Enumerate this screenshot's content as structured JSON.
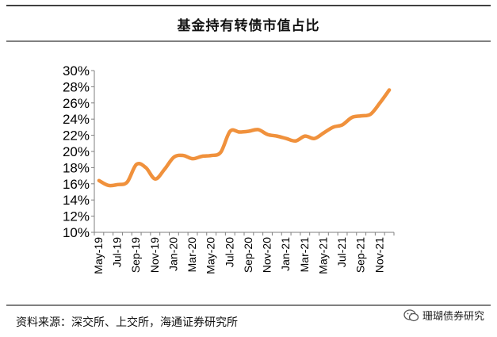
{
  "chart_data": {
    "type": "line",
    "title": "基金持有转债市值占比",
    "xlabel": "",
    "ylabel": "",
    "ylim": [
      10,
      30
    ],
    "yticks": [
      10,
      12,
      14,
      16,
      18,
      20,
      22,
      24,
      26,
      28,
      30
    ],
    "ytick_suffix": "%",
    "x_tick_labels": [
      "May-19",
      "Jul-19",
      "Sep-19",
      "Nov-19",
      "Jan-20",
      "Mar-20",
      "May-20",
      "Jul-20",
      "Sep-20",
      "Nov-20",
      "Jan-21",
      "Mar-21",
      "May-21",
      "Jul-21",
      "Sep-21",
      "Nov-21"
    ],
    "months": [
      "May-19",
      "Jun-19",
      "Jul-19",
      "Aug-19",
      "Sep-19",
      "Oct-19",
      "Nov-19",
      "Dec-19",
      "Jan-20",
      "Feb-20",
      "Mar-20",
      "Apr-20",
      "May-20",
      "Jun-20",
      "Jul-20",
      "Aug-20",
      "Sep-20",
      "Oct-20",
      "Nov-20",
      "Dec-20",
      "Jan-21",
      "Feb-21",
      "Mar-21",
      "Apr-21",
      "May-21",
      "Jun-21",
      "Jul-21",
      "Aug-21",
      "Sep-21",
      "Oct-21",
      "Nov-21",
      "Dec-21"
    ],
    "series": [
      {
        "name": "基金持有转债市值占比",
        "color": "#F0913C",
        "values": [
          16.4,
          15.8,
          15.9,
          16.2,
          18.4,
          18.0,
          16.6,
          17.8,
          19.3,
          19.5,
          19.1,
          19.4,
          19.5,
          19.9,
          22.5,
          22.4,
          22.5,
          22.7,
          22.1,
          21.9,
          21.6,
          21.3,
          21.9,
          21.6,
          22.3,
          23.0,
          23.3,
          24.2,
          24.4,
          24.6,
          26.0,
          27.6
        ]
      }
    ],
    "grid": false,
    "legend": "none"
  },
  "footer": {
    "source": "资料来源：深交所、上交所，海通证券研究所",
    "brand": "珊瑚债券研究"
  },
  "colors": {
    "line": "#F0913C",
    "axis": "#7f7f7f",
    "rule": "#000000"
  }
}
